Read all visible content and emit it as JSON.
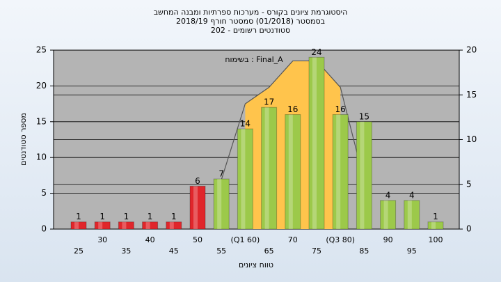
{
  "chart_data": {
    "type": "bar",
    "title": [
      "היסטוגרמת ציונים בקורס - מערכות ספרתיות ומבנה המחשב",
      "בסמסטר  (01/2018)  סמסטר חורף 2018/19",
      "סטודנטים רשומים - 202"
    ],
    "annotation": "בשימוח : Final_A",
    "x_label": "טווח ציונים",
    "y_label": "מספר סטודנטים",
    "categories": [
      "25",
      "30",
      "35",
      "40",
      "45",
      "50",
      "55",
      "(Q1 60)",
      "65",
      "70",
      "75",
      "(Q3 80)",
      "85",
      "90",
      "95",
      "100"
    ],
    "values": [
      1,
      1,
      1,
      1,
      1,
      6,
      7,
      14,
      17,
      16,
      24,
      16,
      15,
      4,
      4,
      1
    ],
    "colors": [
      "#e0262b",
      "#e0262b",
      "#e0262b",
      "#e0262b",
      "#e0262b",
      "#e0262b",
      "#9cc94a",
      "#9cc94a",
      "#9cc94a",
      "#9cc94a",
      "#9cc94a",
      "#9cc94a",
      "#9cc94a",
      "#9cc94a",
      "#9cc94a",
      "#9cc94a"
    ],
    "area": {
      "color": "#ffc44c",
      "values": [
        null,
        null,
        null,
        null,
        null,
        null,
        null,
        17.5,
        19.8,
        23.5,
        23.5,
        19.8,
        null,
        null,
        null,
        null
      ]
    },
    "curve": {
      "color": "#555555",
      "values": [
        null,
        null,
        null,
        null,
        null,
        null,
        6.9,
        17.5,
        19.8,
        23.5,
        23.5,
        19.8,
        6.7,
        null,
        null,
        null
      ]
    },
    "ylim": [
      0,
      25
    ],
    "yticks": [
      0,
      5,
      10,
      15,
      20,
      25
    ],
    "y2lim": [
      0,
      20
    ],
    "y2ticks": [
      0,
      5,
      10,
      15,
      20
    ],
    "grid": true
  }
}
